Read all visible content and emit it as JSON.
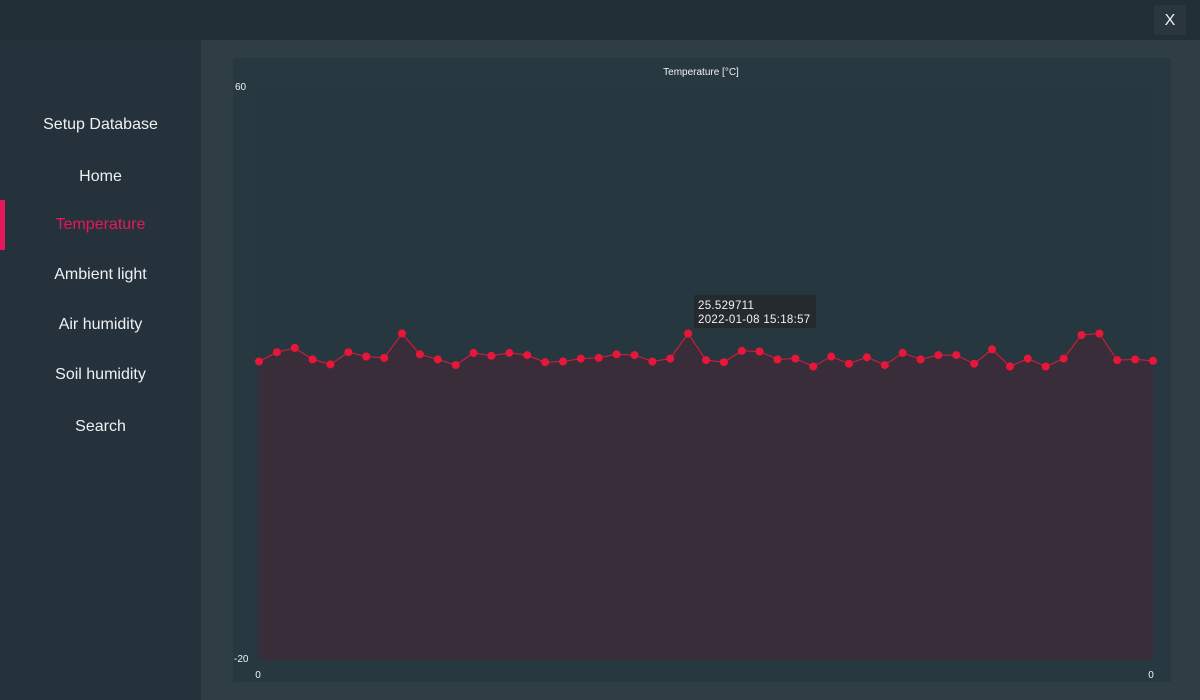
{
  "window": {
    "close_label": "X"
  },
  "sidebar": {
    "items": [
      {
        "label": "Setup Database",
        "active": false
      },
      {
        "label": "Home",
        "active": false
      },
      {
        "label": "Temperature",
        "active": true
      },
      {
        "label": "Ambient light",
        "active": false
      },
      {
        "label": "Air humidity",
        "active": false
      },
      {
        "label": "Soil humidity",
        "active": false
      },
      {
        "label": "Search",
        "active": false
      }
    ]
  },
  "colors": {
    "accent": "#e8175d",
    "series": "#e8173a",
    "area_fill": "#3a2d3a",
    "tooltip_bg": "#252a2e"
  },
  "tooltip": {
    "value": "25.529711",
    "timestamp": "2022-01-08 15:18:57"
  },
  "chart_data": {
    "type": "area",
    "title": "Temperature [°C]",
    "ylim": [
      -20,
      60
    ],
    "y_tick_labels": [
      "60",
      "-20"
    ],
    "x_tick_labels": [
      "0",
      "0"
    ],
    "grid": false,
    "series": [
      {
        "values": [
          21.6,
          22.9,
          23.5,
          21.9,
          21.2,
          22.9,
          22.3,
          22.1,
          25.5,
          22.6,
          21.9,
          21.1,
          22.8,
          22.4,
          22.8,
          22.5,
          21.5,
          21.6,
          22.0,
          22.1,
          22.6,
          22.5,
          21.6,
          22.0,
          25.5,
          21.8,
          21.5,
          23.1,
          23.0,
          21.9,
          22.0,
          20.9,
          22.3,
          21.3,
          22.2,
          21.1,
          22.8,
          21.9,
          22.5,
          22.5,
          21.3,
          23.3,
          20.9,
          22.0,
          20.9,
          22.0,
          25.3,
          25.5,
          21.8,
          21.9,
          21.7
        ]
      }
    ]
  }
}
